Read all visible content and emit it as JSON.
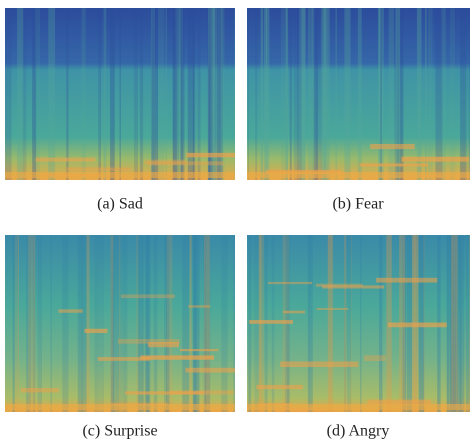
{
  "panels": [
    {
      "caption": "(a) Sad"
    },
    {
      "caption": "(b) Fear"
    },
    {
      "caption": "(c) Surprise"
    },
    {
      "caption": "(d) Angry"
    }
  ]
}
